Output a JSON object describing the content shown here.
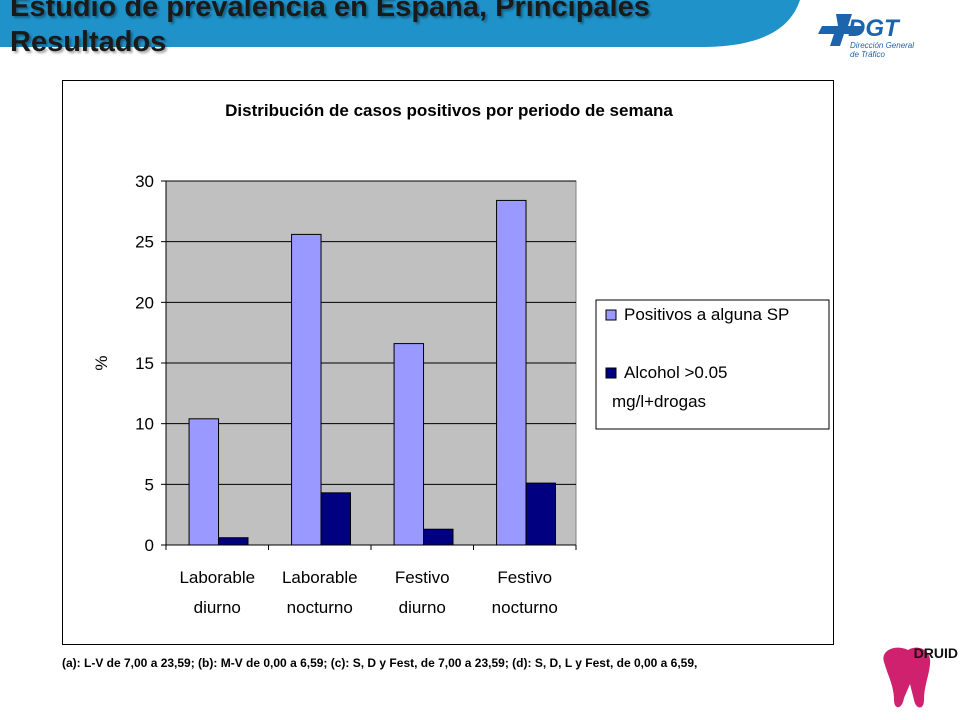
{
  "slide": {
    "title": "Estudio de prevalencia en España, Principales Resultados",
    "footnote": "(a): L-V de 7,00 a 23,59; (b): M-V de 0,00 a 6,59; (c): S, D y Fest, de 7,00 a 23,59; (d): S, D, L y Fest, de 0,00 a 6,59,",
    "logos": {
      "dgt": {
        "text": "DGT",
        "subtitle_line1": "Dirección General",
        "subtitle_line2": "de Tráfico"
      },
      "druid": {
        "text": "DRUID"
      }
    },
    "colors": {
      "banner": "#1f93c9",
      "dgt_blue": "#1c64ad",
      "druid_magenta": "#d0216e"
    }
  },
  "chart_data": {
    "type": "bar",
    "title": "Distribución de casos positivos por periodo de semana",
    "xlabel": "",
    "ylabel": "%",
    "ylim": [
      0,
      30
    ],
    "yticks": [
      "0",
      "5",
      "10",
      "15",
      "20",
      "25",
      "30"
    ],
    "grid": true,
    "legend_position": "right",
    "categories": [
      [
        "Laborable",
        "diurno"
      ],
      [
        "Laborable",
        "nocturno"
      ],
      [
        "Festivo",
        "diurno"
      ],
      [
        "Festivo",
        "nocturno"
      ]
    ],
    "series": [
      {
        "name": "Positivos a alguna SP",
        "name_lines": [
          "Positivos a alguna SP"
        ],
        "color": "#9999ff",
        "values": [
          10.4,
          25.6,
          16.6,
          28.4
        ]
      },
      {
        "name": "Alcohol >0.05 mg/l+drogas",
        "name_lines": [
          "Alcohol >0.05",
          "mg/l+drogas"
        ],
        "color": "#000080",
        "values": [
          0.6,
          4.3,
          1.3,
          5.1
        ]
      }
    ]
  }
}
